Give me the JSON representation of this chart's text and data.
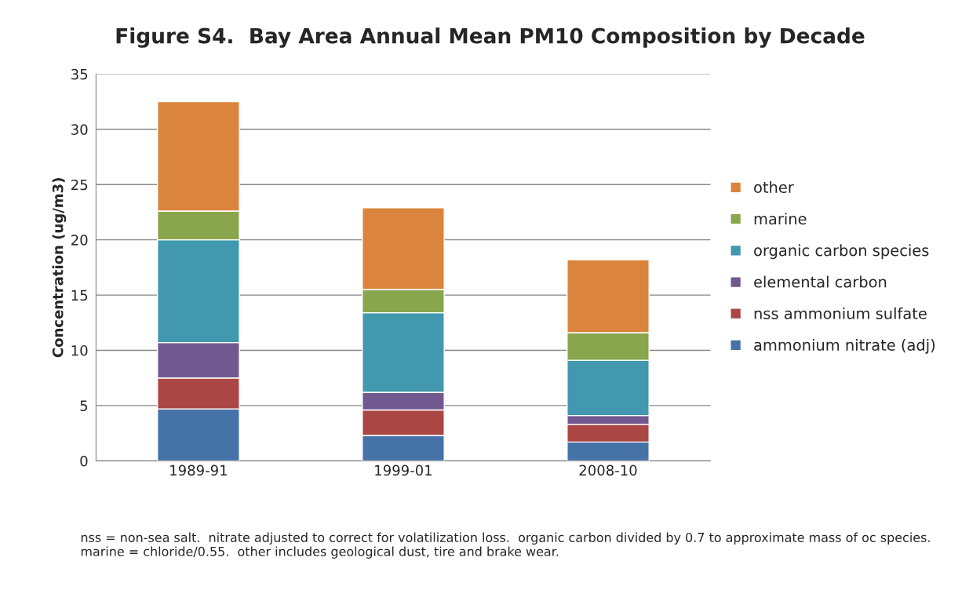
{
  "chart_data": {
    "type": "bar",
    "title": "Figure S4.  Bay Area Annual Mean PM10 Composition by Decade",
    "ylabel": "Concentration (ug/m3)",
    "categories": [
      "1989-91",
      "1999-01",
      "2008-10"
    ],
    "stacked": true,
    "series": [
      {
        "name": "ammonium nitrate (adj)",
        "color": "#4572a7",
        "values": [
          4.7,
          2.3,
          1.7
        ]
      },
      {
        "name": "nss ammonium sulfate",
        "color": "#aa4643",
        "values": [
          2.8,
          2.3,
          1.6
        ]
      },
      {
        "name": "elemental carbon",
        "color": "#71588f",
        "values": [
          3.2,
          1.6,
          0.8
        ]
      },
      {
        "name": "organic carbon species",
        "color": "#4198af",
        "values": [
          9.3,
          7.2,
          5.0
        ]
      },
      {
        "name": "marine",
        "color": "#89a54e",
        "values": [
          2.6,
          2.1,
          2.5
        ]
      },
      {
        "name": "other",
        "color": "#db843d",
        "values": [
          9.9,
          7.4,
          6.6
        ]
      }
    ],
    "ylim": [
      0,
      35
    ],
    "yticks": [
      0,
      5,
      10,
      15,
      20,
      25,
      30,
      35
    ],
    "grid": "y",
    "legend": "right",
    "annotations": [
      "nss = non-sea salt.  nitrate adjusted to correct for volatilization loss.  organic carbon divided by 0.7 to approximate mass of oc species.  marine = chloride/0.55.  other includes geological dust, tire and brake wear."
    ]
  }
}
